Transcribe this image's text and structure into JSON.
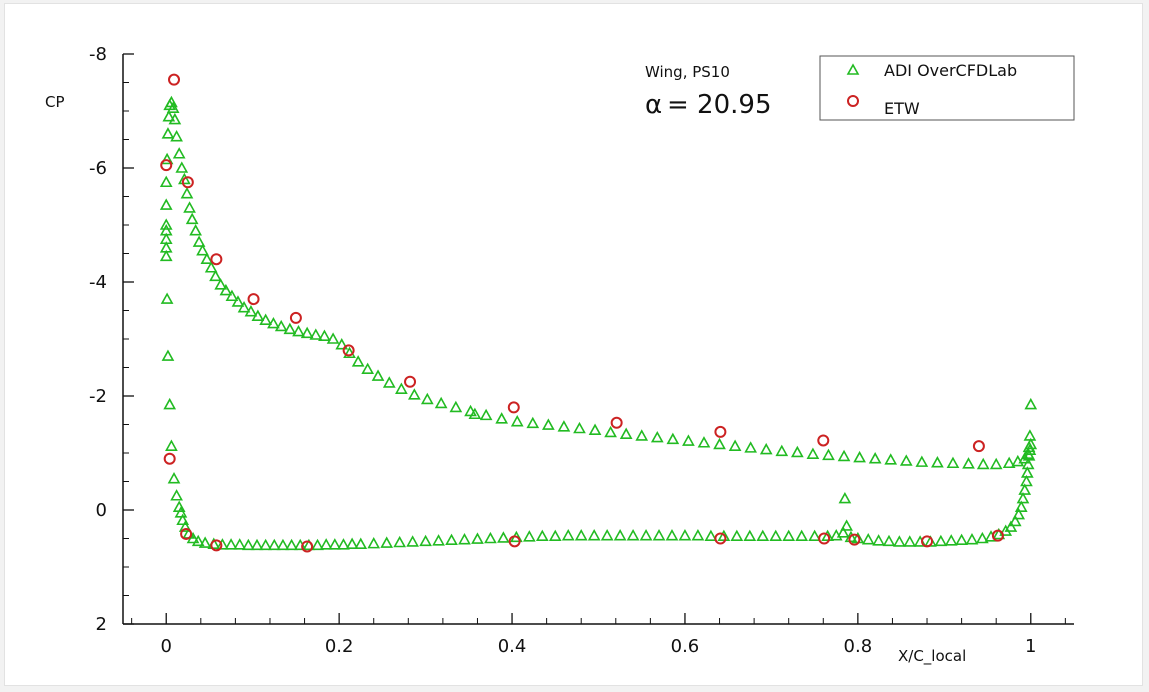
{
  "chart_data": {
    "type": "scatter",
    "xlabel": "X/C_local",
    "ylabel": "CP",
    "xlim": [
      -0.05,
      1.05
    ],
    "ylim": [
      2,
      -8
    ],
    "y_inverted": true,
    "xticks": [
      0,
      0.2,
      0.4,
      0.6,
      0.8,
      1
    ],
    "xtick_labels": [
      "0",
      "0.2",
      "0.4",
      "0.6",
      "0.8",
      "1"
    ],
    "yticks": [
      -8,
      -6,
      -4,
      -2,
      0,
      2
    ],
    "ytick_labels": [
      "-8",
      "-6",
      "-4",
      "-2",
      "0",
      "2"
    ],
    "grid": false,
    "legend_position": "top-right",
    "annotations": {
      "line1": "Wing, PS10",
      "alpha_symbol": "α",
      "alpha_text": "= 20.95"
    },
    "series": [
      {
        "name": "ADI OverCFDLab",
        "marker": "triangle",
        "color": "#22bb22",
        "points": [
          [
            0.0,
            -4.45
          ],
          [
            0.0,
            -4.6
          ],
          [
            0.0,
            -4.75
          ],
          [
            0.0,
            -4.9
          ],
          [
            0.0,
            -5.0
          ],
          [
            0.0,
            -5.35
          ],
          [
            0.0,
            -5.75
          ],
          [
            0.001,
            -6.15
          ],
          [
            0.002,
            -6.6
          ],
          [
            0.003,
            -6.9
          ],
          [
            0.004,
            -7.1
          ],
          [
            0.006,
            -7.15
          ],
          [
            0.008,
            -7.05
          ],
          [
            0.01,
            -6.85
          ],
          [
            0.012,
            -6.55
          ],
          [
            0.015,
            -6.25
          ],
          [
            0.018,
            -6.0
          ],
          [
            0.021,
            -5.8
          ],
          [
            0.024,
            -5.55
          ],
          [
            0.027,
            -5.3
          ],
          [
            0.03,
            -5.1
          ],
          [
            0.034,
            -4.9
          ],
          [
            0.038,
            -4.7
          ],
          [
            0.042,
            -4.55
          ],
          [
            0.047,
            -4.4
          ],
          [
            0.052,
            -4.25
          ],
          [
            0.057,
            -4.1
          ],
          [
            0.063,
            -3.95
          ],
          [
            0.069,
            -3.85
          ],
          [
            0.076,
            -3.75
          ],
          [
            0.083,
            -3.65
          ],
          [
            0.09,
            -3.55
          ],
          [
            0.098,
            -3.48
          ],
          [
            0.106,
            -3.4
          ],
          [
            0.115,
            -3.33
          ],
          [
            0.124,
            -3.27
          ],
          [
            0.133,
            -3.22
          ],
          [
            0.143,
            -3.17
          ],
          [
            0.153,
            -3.13
          ],
          [
            0.163,
            -3.1
          ],
          [
            0.173,
            -3.07
          ],
          [
            0.183,
            -3.05
          ],
          [
            0.193,
            -3.0
          ],
          [
            0.203,
            -2.9
          ],
          [
            0.212,
            -2.75
          ],
          [
            0.222,
            -2.6
          ],
          [
            0.233,
            -2.47
          ],
          [
            0.245,
            -2.35
          ],
          [
            0.258,
            -2.23
          ],
          [
            0.272,
            -2.12
          ],
          [
            0.287,
            -2.02
          ],
          [
            0.302,
            -1.94
          ],
          [
            0.318,
            -1.87
          ],
          [
            0.335,
            -1.8
          ],
          [
            0.352,
            -1.73
          ],
          [
            0.357,
            -1.68
          ],
          [
            0.37,
            -1.66
          ],
          [
            0.388,
            -1.6
          ],
          [
            0.406,
            -1.55
          ],
          [
            0.424,
            -1.52
          ],
          [
            0.442,
            -1.49
          ],
          [
            0.46,
            -1.46
          ],
          [
            0.478,
            -1.43
          ],
          [
            0.496,
            -1.4
          ],
          [
            0.514,
            -1.36
          ],
          [
            0.532,
            -1.33
          ],
          [
            0.55,
            -1.3
          ],
          [
            0.568,
            -1.27
          ],
          [
            0.586,
            -1.24
          ],
          [
            0.604,
            -1.21
          ],
          [
            0.622,
            -1.18
          ],
          [
            0.64,
            -1.15
          ],
          [
            0.658,
            -1.12
          ],
          [
            0.676,
            -1.09
          ],
          [
            0.694,
            -1.06
          ],
          [
            0.712,
            -1.03
          ],
          [
            0.73,
            -1.01
          ],
          [
            0.748,
            -0.98
          ],
          [
            0.766,
            -0.96
          ],
          [
            0.784,
            -0.94
          ],
          [
            0.802,
            -0.92
          ],
          [
            0.82,
            -0.9
          ],
          [
            0.838,
            -0.88
          ],
          [
            0.856,
            -0.86
          ],
          [
            0.874,
            -0.84
          ],
          [
            0.892,
            -0.83
          ],
          [
            0.91,
            -0.82
          ],
          [
            0.928,
            -0.81
          ],
          [
            0.945,
            -0.8
          ],
          [
            0.96,
            -0.8
          ],
          [
            0.975,
            -0.82
          ],
          [
            0.985,
            -0.85
          ],
          [
            0.993,
            -0.9
          ],
          [
            0.997,
            -0.98
          ],
          [
            0.998,
            -1.1
          ],
          [
            0.999,
            -1.3
          ],
          [
            1.0,
            -1.85
          ],
          [
            0.001,
            -3.7
          ],
          [
            0.002,
            -2.7
          ],
          [
            0.004,
            -1.85
          ],
          [
            0.006,
            -1.12
          ],
          [
            0.009,
            -0.55
          ],
          [
            0.012,
            -0.25
          ],
          [
            0.015,
            -0.05
          ],
          [
            0.017,
            0.05
          ],
          [
            0.019,
            0.18
          ],
          [
            0.022,
            0.3
          ],
          [
            0.026,
            0.42
          ],
          [
            0.031,
            0.5
          ],
          [
            0.037,
            0.55
          ],
          [
            0.045,
            0.58
          ],
          [
            0.055,
            0.6
          ],
          [
            0.065,
            0.61
          ],
          [
            0.075,
            0.61
          ],
          [
            0.085,
            0.61
          ],
          [
            0.095,
            0.62
          ],
          [
            0.105,
            0.62
          ],
          [
            0.115,
            0.62
          ],
          [
            0.125,
            0.62
          ],
          [
            0.135,
            0.62
          ],
          [
            0.145,
            0.62
          ],
          [
            0.155,
            0.62
          ],
          [
            0.165,
            0.62
          ],
          [
            0.175,
            0.62
          ],
          [
            0.185,
            0.61
          ],
          [
            0.195,
            0.61
          ],
          [
            0.205,
            0.61
          ],
          [
            0.215,
            0.6
          ],
          [
            0.225,
            0.6
          ],
          [
            0.24,
            0.59
          ],
          [
            0.255,
            0.58
          ],
          [
            0.27,
            0.57
          ],
          [
            0.285,
            0.56
          ],
          [
            0.3,
            0.55
          ],
          [
            0.315,
            0.54
          ],
          [
            0.33,
            0.53
          ],
          [
            0.345,
            0.52
          ],
          [
            0.36,
            0.51
          ],
          [
            0.375,
            0.5
          ],
          [
            0.39,
            0.49
          ],
          [
            0.405,
            0.48
          ],
          [
            0.42,
            0.47
          ],
          [
            0.435,
            0.46
          ],
          [
            0.45,
            0.46
          ],
          [
            0.465,
            0.45
          ],
          [
            0.48,
            0.45
          ],
          [
            0.495,
            0.45
          ],
          [
            0.51,
            0.45
          ],
          [
            0.525,
            0.45
          ],
          [
            0.54,
            0.45
          ],
          [
            0.555,
            0.45
          ],
          [
            0.57,
            0.45
          ],
          [
            0.585,
            0.45
          ],
          [
            0.6,
            0.45
          ],
          [
            0.615,
            0.45
          ],
          [
            0.63,
            0.46
          ],
          [
            0.645,
            0.46
          ],
          [
            0.66,
            0.46
          ],
          [
            0.675,
            0.46
          ],
          [
            0.69,
            0.46
          ],
          [
            0.705,
            0.46
          ],
          [
            0.72,
            0.46
          ],
          [
            0.735,
            0.46
          ],
          [
            0.75,
            0.46
          ],
          [
            0.765,
            0.46
          ],
          [
            0.775,
            0.45
          ],
          [
            0.783,
            0.4
          ],
          [
            0.785,
            -0.2
          ],
          [
            0.787,
            0.28
          ],
          [
            0.792,
            0.48
          ],
          [
            0.8,
            0.5
          ],
          [
            0.812,
            0.52
          ],
          [
            0.824,
            0.54
          ],
          [
            0.836,
            0.55
          ],
          [
            0.848,
            0.56
          ],
          [
            0.86,
            0.56
          ],
          [
            0.872,
            0.56
          ],
          [
            0.884,
            0.56
          ],
          [
            0.896,
            0.55
          ],
          [
            0.908,
            0.54
          ],
          [
            0.92,
            0.53
          ],
          [
            0.932,
            0.52
          ],
          [
            0.944,
            0.5
          ],
          [
            0.954,
            0.47
          ],
          [
            0.963,
            0.43
          ],
          [
            0.971,
            0.37
          ],
          [
            0.977,
            0.3
          ],
          [
            0.982,
            0.2
          ],
          [
            0.986,
            0.08
          ],
          [
            0.989,
            -0.05
          ],
          [
            0.991,
            -0.2
          ],
          [
            0.993,
            -0.35
          ],
          [
            0.995,
            -0.5
          ],
          [
            0.996,
            -0.65
          ],
          [
            0.997,
            -0.8
          ],
          [
            0.998,
            -0.95
          ],
          [
            0.999,
            -1.05
          ],
          [
            1.0,
            -1.15
          ]
        ]
      },
      {
        "name": "ETW",
        "marker": "circle",
        "color": "#cc2222",
        "points": [
          [
            0.0,
            -6.05
          ],
          [
            0.009,
            -7.55
          ],
          [
            0.025,
            -5.75
          ],
          [
            0.058,
            -4.4
          ],
          [
            0.101,
            -3.7
          ],
          [
            0.15,
            -3.37
          ],
          [
            0.211,
            -2.8
          ],
          [
            0.282,
            -2.25
          ],
          [
            0.402,
            -1.8
          ],
          [
            0.521,
            -1.53
          ],
          [
            0.641,
            -1.37
          ],
          [
            0.76,
            -1.22
          ],
          [
            0.94,
            -1.12
          ],
          [
            0.004,
            -0.9
          ],
          [
            0.023,
            0.42
          ],
          [
            0.058,
            0.62
          ],
          [
            0.163,
            0.64
          ],
          [
            0.403,
            0.55
          ],
          [
            0.641,
            0.5
          ],
          [
            0.761,
            0.5
          ],
          [
            0.796,
            0.52
          ],
          [
            0.88,
            0.55
          ],
          [
            0.962,
            0.45
          ]
        ]
      }
    ]
  }
}
